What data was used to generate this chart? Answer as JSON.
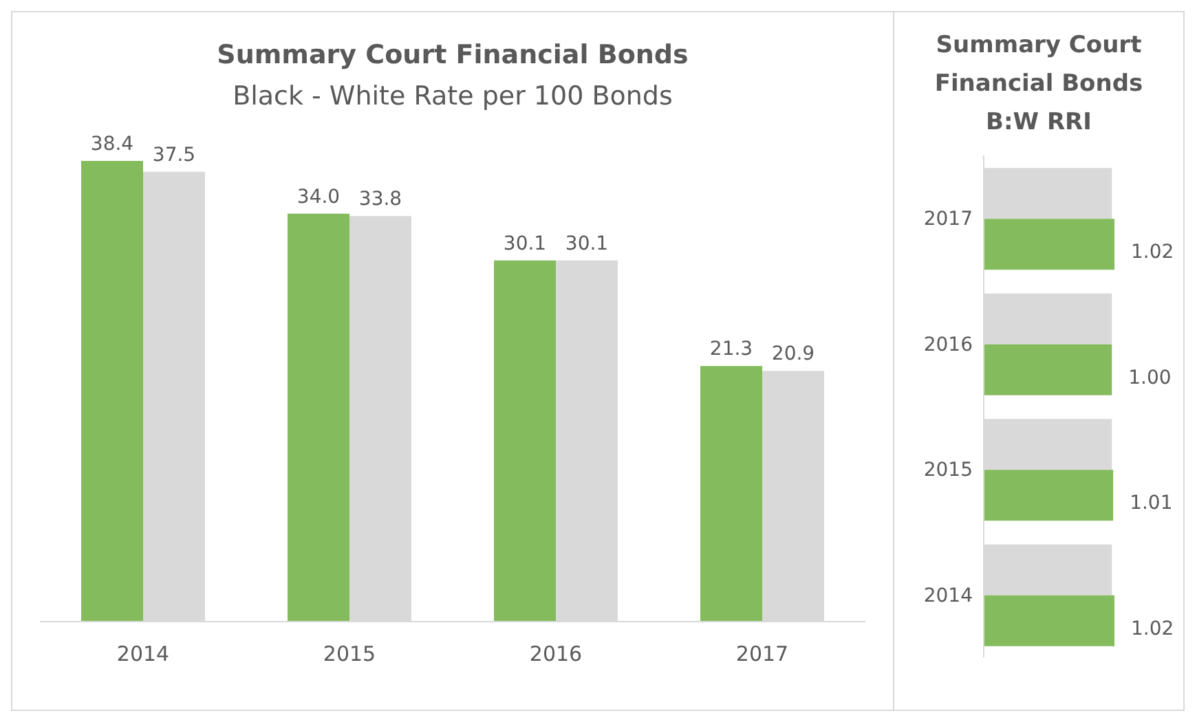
{
  "chart_data": [
    {
      "type": "bar",
      "title": "Summary Court Financial Bonds",
      "subtitle": "Black - White Rate per 100 Bonds",
      "categories": [
        "2014",
        "2015",
        "2016",
        "2017"
      ],
      "series": [
        {
          "color": "#84bb5c",
          "values": [
            38.4,
            34.0,
            30.1,
            21.3
          ],
          "value_labels": [
            "38.4",
            "34.0",
            "30.1",
            "21.3"
          ]
        },
        {
          "color": "#d9d9d9",
          "values": [
            37.5,
            33.8,
            30.1,
            20.9
          ],
          "value_labels": [
            "37.5",
            "33.8",
            "30.1",
            "20.9"
          ]
        }
      ],
      "legend": false,
      "grid": false
    },
    {
      "type": "bar",
      "orientation": "horizontal",
      "title": "Summary Court Financial Bonds",
      "subtitle": "B:W RRI",
      "categories": [
        "2017",
        "2016",
        "2015",
        "2014"
      ],
      "series": [
        {
          "color": "#d9d9d9",
          "values": [
            1,
            1,
            1,
            1
          ]
        },
        {
          "color": "#84bb5c",
          "values": [
            1.02,
            1.0,
            1.01,
            1.02
          ],
          "value_labels": [
            "1.02",
            "1.00",
            "1.01",
            "1.02"
          ]
        }
      ],
      "legend": false,
      "grid": false
    }
  ]
}
